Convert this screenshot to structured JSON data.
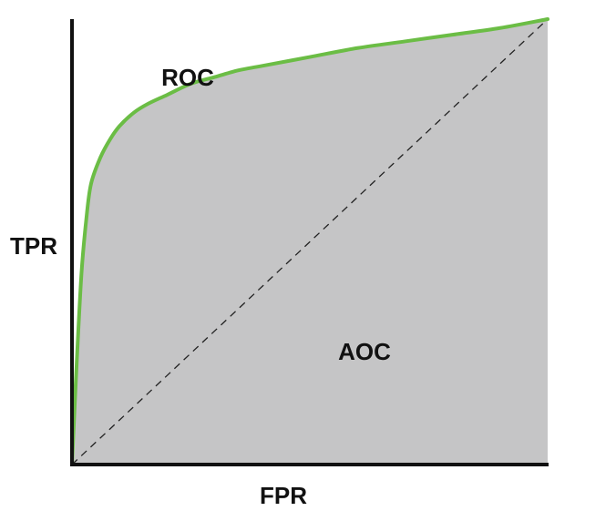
{
  "chart_data": {
    "type": "area",
    "xlabel": "FPR",
    "ylabel": "TPR",
    "xlim": [
      0,
      1
    ],
    "ylim": [
      0,
      1
    ],
    "grid": false,
    "annotations": [
      {
        "text": "ROC",
        "target": "curve"
      },
      {
        "text": "AOC",
        "target": "area"
      }
    ],
    "series": [
      {
        "role": "roc-curve",
        "x": [
          0.0,
          0.01,
          0.02,
          0.03,
          0.04,
          0.06,
          0.08,
          0.1,
          0.13,
          0.16,
          0.2,
          0.25,
          0.3,
          0.35,
          0.4,
          0.5,
          0.6,
          0.7,
          0.8,
          0.9,
          1.0
        ],
        "y": [
          0.0,
          0.23,
          0.43,
          0.55,
          0.63,
          0.69,
          0.73,
          0.76,
          0.79,
          0.81,
          0.83,
          0.855,
          0.87,
          0.885,
          0.895,
          0.915,
          0.935,
          0.95,
          0.965,
          0.98,
          1.0
        ]
      },
      {
        "role": "chance-diagonal",
        "x": [
          0,
          1
        ],
        "y": [
          0,
          1
        ]
      }
    ],
    "colors": {
      "curve": "#6bbd45",
      "area": "#c5c5c6",
      "axes": "#111111",
      "diagonal": "#222222"
    }
  }
}
